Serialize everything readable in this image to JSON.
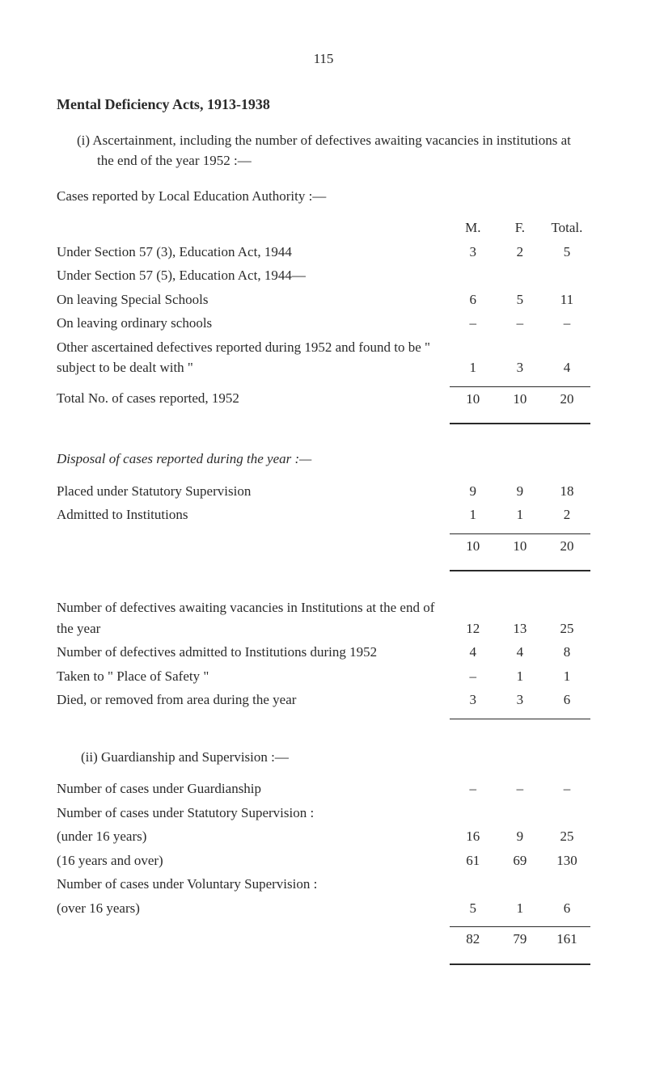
{
  "page_number": "115",
  "title": "Mental Deficiency Acts, 1913-1938",
  "section_i_label": "(i)",
  "section_i_intro": "Ascertainment, including the number of defectives awaiting vacancies in institutions at the end of the year 1952 :—",
  "cases_reported_heading": "Cases reported by Local Education Authority :—",
  "col_headers": {
    "m": "M.",
    "f": "F.",
    "total": "Total."
  },
  "table1": {
    "rows": [
      {
        "desc": "Under Section 57 (3), Education Act, 1944",
        "m": "3",
        "f": "2",
        "t": "5",
        "indent": false
      },
      {
        "desc": "Under Section 57 (5), Education Act, 1944—",
        "m": "",
        "f": "",
        "t": "",
        "indent": false
      },
      {
        "desc": "On leaving Special Schools",
        "m": "6",
        "f": "5",
        "t": "11",
        "indent": true
      },
      {
        "desc": "On leaving ordinary schools",
        "m": "–",
        "f": "–",
        "t": "–",
        "indent": true
      },
      {
        "desc": "Other ascertained defectives reported during 1952 and found to be \" subject to be dealt with \"",
        "m": "1",
        "f": "3",
        "t": "4",
        "indent": false
      }
    ],
    "total_row": {
      "desc": "Total No. of cases reported, 1952",
      "m": "10",
      "f": "10",
      "t": "20"
    }
  },
  "disposal_heading": "Disposal of cases reported during the year :—",
  "table2": {
    "rows": [
      {
        "desc": "Placed under Statutory Supervision",
        "m": "9",
        "f": "9",
        "t": "18"
      },
      {
        "desc": "Admitted to Institutions",
        "m": "1",
        "f": "1",
        "t": "2"
      }
    ],
    "total_row": {
      "m": "10",
      "f": "10",
      "t": "20"
    }
  },
  "table3": {
    "rows": [
      {
        "desc": "Number of defectives awaiting vacancies in Institutions at the end of the year",
        "m": "12",
        "f": "13",
        "t": "25"
      },
      {
        "desc": "Number of defectives admitted to Institutions during 1952",
        "m": "4",
        "f": "4",
        "t": "8"
      },
      {
        "desc": "Taken to \" Place of Safety \"",
        "m": "–",
        "f": "1",
        "t": "1"
      },
      {
        "desc": "Died, or removed from area during the year",
        "m": "3",
        "f": "3",
        "t": "6"
      }
    ]
  },
  "section_ii_heading": "(ii) Guardianship and Supervision :—",
  "table4": {
    "rows": [
      {
        "desc": "Number of cases under Guardianship",
        "m": "–",
        "f": "–",
        "t": "–",
        "indent": false
      },
      {
        "desc": "Number of cases under Statutory Supervision :",
        "m": "",
        "f": "",
        "t": "",
        "indent": false
      },
      {
        "desc": "(under 16 years)",
        "m": "16",
        "f": "9",
        "t": "25",
        "indent": true
      },
      {
        "desc": "(16 years and over)",
        "m": "61",
        "f": "69",
        "t": "130",
        "indent": true
      },
      {
        "desc": "Number of cases under Voluntary Supervision :",
        "m": "",
        "f": "",
        "t": "",
        "indent": false
      },
      {
        "desc": "(over 16 years)",
        "m": "5",
        "f": "1",
        "t": "6",
        "indent": true
      }
    ],
    "total_row": {
      "m": "82",
      "f": "79",
      "t": "161"
    }
  }
}
